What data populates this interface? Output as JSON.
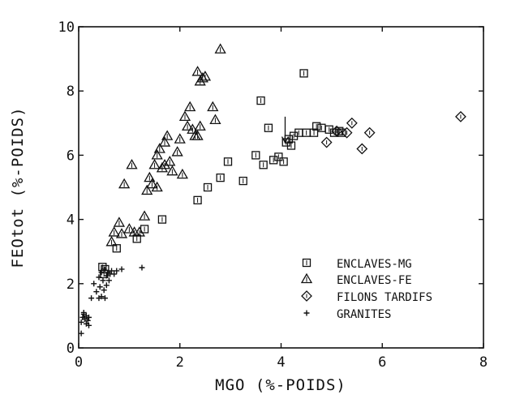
{
  "chart_data": {
    "type": "scatter",
    "title": "",
    "xlabel": "MGO (%-POIDS)",
    "ylabel": "FEOtot (%-POIDS)",
    "xlim": [
      0,
      8
    ],
    "ylim": [
      0,
      10
    ],
    "x_ticks": [
      0,
      2,
      4,
      6,
      8
    ],
    "y_ticks": [
      0,
      2,
      4,
      6,
      8,
      10
    ],
    "x_tick_labels": [
      "0",
      "2",
      "4",
      "6",
      "8"
    ],
    "y_tick_labels": [
      "0",
      "2",
      "4",
      "6",
      "8",
      "10"
    ],
    "grid": false,
    "legend_position": "bottom-right",
    "annotations": [
      {
        "type": "arrow",
        "x": 4.08,
        "y_from": 7.2,
        "y_to": 6.4
      }
    ],
    "series": [
      {
        "name": "ENCLAVES-MG",
        "marker": "square",
        "points": [
          [
            0.47,
            2.52
          ],
          [
            0.52,
            2.45
          ],
          [
            0.5,
            2.3
          ],
          [
            0.75,
            3.1
          ],
          [
            1.15,
            3.4
          ],
          [
            1.3,
            3.7
          ],
          [
            1.65,
            4.0
          ],
          [
            2.35,
            4.6
          ],
          [
            2.55,
            5.0
          ],
          [
            2.8,
            5.3
          ],
          [
            2.95,
            5.8
          ],
          [
            3.25,
            5.2
          ],
          [
            3.5,
            6.0
          ],
          [
            3.6,
            7.7
          ],
          [
            3.65,
            5.7
          ],
          [
            3.75,
            6.85
          ],
          [
            3.85,
            5.85
          ],
          [
            3.95,
            5.95
          ],
          [
            4.05,
            5.8
          ],
          [
            4.1,
            6.4
          ],
          [
            4.15,
            6.5
          ],
          [
            4.2,
            6.3
          ],
          [
            4.25,
            6.6
          ],
          [
            4.35,
            6.7
          ],
          [
            4.5,
            6.7
          ],
          [
            4.45,
            8.55
          ],
          [
            4.65,
            6.7
          ],
          [
            4.7,
            6.9
          ],
          [
            4.8,
            6.85
          ],
          [
            4.95,
            6.8
          ],
          [
            5.05,
            6.7
          ],
          [
            5.15,
            6.75
          ],
          [
            5.2,
            6.7
          ]
        ]
      },
      {
        "name": "ENCLAVES-FE",
        "marker": "triangle",
        "points": [
          [
            0.65,
            3.3
          ],
          [
            0.7,
            3.6
          ],
          [
            0.8,
            3.9
          ],
          [
            0.85,
            3.55
          ],
          [
            0.9,
            5.1
          ],
          [
            1.0,
            3.7
          ],
          [
            1.05,
            5.7
          ],
          [
            1.1,
            3.6
          ],
          [
            1.2,
            3.6
          ],
          [
            1.3,
            4.1
          ],
          [
            1.35,
            4.9
          ],
          [
            1.4,
            5.3
          ],
          [
            1.45,
            5.1
          ],
          [
            1.5,
            5.7
          ],
          [
            1.55,
            5.0
          ],
          [
            1.55,
            6.0
          ],
          [
            1.6,
            6.2
          ],
          [
            1.65,
            5.6
          ],
          [
            1.7,
            5.7
          ],
          [
            1.7,
            6.4
          ],
          [
            1.75,
            6.6
          ],
          [
            1.8,
            5.8
          ],
          [
            1.85,
            5.5
          ],
          [
            1.95,
            6.1
          ],
          [
            2.0,
            6.5
          ],
          [
            2.05,
            5.4
          ],
          [
            2.1,
            7.2
          ],
          [
            2.15,
            6.9
          ],
          [
            2.2,
            7.5
          ],
          [
            2.25,
            6.8
          ],
          [
            2.3,
            6.6
          ],
          [
            2.35,
            6.6
          ],
          [
            2.4,
            6.9
          ],
          [
            2.35,
            8.6
          ],
          [
            2.4,
            8.3
          ],
          [
            2.45,
            8.4
          ],
          [
            2.5,
            8.45
          ],
          [
            2.65,
            7.5
          ],
          [
            2.7,
            7.1
          ],
          [
            2.8,
            9.3
          ]
        ]
      },
      {
        "name": "FILONS TARDIFS",
        "marker": "diamond",
        "points": [
          [
            4.9,
            6.4
          ],
          [
            5.1,
            6.75
          ],
          [
            5.3,
            6.7
          ],
          [
            5.4,
            7.0
          ],
          [
            5.6,
            6.2
          ],
          [
            5.75,
            6.7
          ],
          [
            7.55,
            7.2
          ]
        ]
      },
      {
        "name": "GRANITES",
        "marker": "plus",
        "points": [
          [
            0.05,
            0.8
          ],
          [
            0.08,
            0.95
          ],
          [
            0.1,
            1.1
          ],
          [
            0.12,
            0.9
          ],
          [
            0.15,
            1.0
          ],
          [
            0.15,
            0.75
          ],
          [
            0.18,
            0.85
          ],
          [
            0.2,
            0.95
          ],
          [
            0.2,
            0.7
          ],
          [
            0.05,
            0.45
          ],
          [
            0.1,
            1.05
          ],
          [
            0.25,
            1.55
          ],
          [
            0.3,
            2.0
          ],
          [
            0.35,
            1.75
          ],
          [
            0.4,
            1.55
          ],
          [
            0.4,
            2.2
          ],
          [
            0.42,
            1.9
          ],
          [
            0.45,
            1.6
          ],
          [
            0.45,
            2.35
          ],
          [
            0.48,
            2.1
          ],
          [
            0.5,
            1.8
          ],
          [
            0.5,
            2.45
          ],
          [
            0.52,
            1.55
          ],
          [
            0.55,
            2.25
          ],
          [
            0.55,
            1.95
          ],
          [
            0.58,
            2.35
          ],
          [
            0.6,
            2.1
          ],
          [
            0.62,
            2.3
          ],
          [
            0.65,
            2.4
          ],
          [
            0.7,
            2.3
          ],
          [
            0.75,
            2.4
          ],
          [
            0.85,
            2.45
          ],
          [
            1.25,
            2.5
          ]
        ]
      }
    ]
  }
}
